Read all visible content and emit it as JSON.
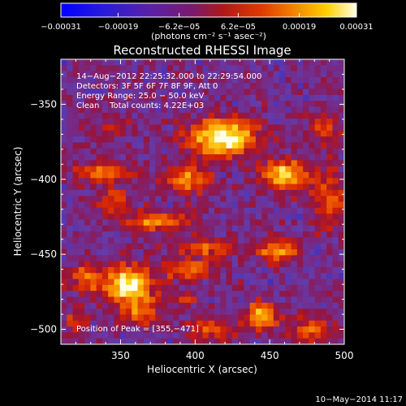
{
  "chart_data": {
    "type": "heatmap",
    "title": "Reconstructed RHESSI Image",
    "xlabel": "Heliocentric X (arcsec)",
    "ylabel": "Heliocentric Y (arcsec)",
    "xlim": [
      310,
      500
    ],
    "ylim": [
      -510,
      -320
    ],
    "x_ticks": [
      350,
      400,
      450,
      500
    ],
    "x_tick_labels": [
      "350",
      "400",
      "450",
      "500"
    ],
    "y_ticks": [
      -350,
      -400,
      -450,
      -500
    ],
    "y_tick_labels": [
      "−350",
      "−400",
      "−450",
      "−500"
    ],
    "colorbar": {
      "min": -0.00031,
      "max": 0.00031,
      "tick_values": [
        -0.00031,
        -0.00019,
        -6.2e-05,
        6.2e-05,
        0.00019,
        0.00031
      ],
      "tick_labels": [
        "−0.00031",
        "−0.00019",
        "−6.2e−05",
        "6.2e−05",
        "0.00019",
        "0.00031"
      ],
      "label": "(photons cm⁻² s⁻¹ asec⁻²)"
    },
    "info_lines": [
      "14−Aug−2012 22:25:32.000 to 22:29:54.000",
      "Detectors: 3F 5F 6F 7F 8F 9F, Att 0",
      "Energy Range: 25.0 − 50.0 keV",
      "Clean    Total counts: 4.22E+03"
    ],
    "peak_text": "Position of Peak = [355,−471]",
    "peak_position": [
      355,
      -471
    ],
    "sources": [
      {
        "x": 418,
        "y": -372,
        "rx": 22,
        "ry": 12,
        "amp": 1.0
      },
      {
        "x": 355,
        "y": -471,
        "rx": 15,
        "ry": 13,
        "amp": 1.0
      },
      {
        "x": 460,
        "y": -397,
        "rx": 14,
        "ry": 10,
        "amp": 0.85
      },
      {
        "x": 445,
        "y": -491,
        "rx": 11,
        "ry": 9,
        "amp": 0.72
      },
      {
        "x": 455,
        "y": -447,
        "rx": 14,
        "ry": 8,
        "amp": 0.6
      },
      {
        "x": 395,
        "y": -460,
        "rx": 18,
        "ry": 7,
        "amp": 0.55
      },
      {
        "x": 375,
        "y": -428,
        "rx": 22,
        "ry": 7,
        "amp": 0.6
      },
      {
        "x": 405,
        "y": -445,
        "rx": 18,
        "ry": 6,
        "amp": 0.48
      },
      {
        "x": 340,
        "y": -395,
        "rx": 20,
        "ry": 7,
        "amp": 0.55
      },
      {
        "x": 345,
        "y": -415,
        "rx": 12,
        "ry": 8,
        "amp": 0.4
      },
      {
        "x": 395,
        "y": -400,
        "rx": 15,
        "ry": 9,
        "amp": 0.6
      },
      {
        "x": 490,
        "y": -412,
        "rx": 10,
        "ry": 20,
        "amp": 0.5
      },
      {
        "x": 488,
        "y": -365,
        "rx": 10,
        "ry": 10,
        "amp": 0.35
      },
      {
        "x": 327,
        "y": -465,
        "rx": 12,
        "ry": 10,
        "amp": 0.5
      },
      {
        "x": 365,
        "y": -490,
        "rx": 12,
        "ry": 9,
        "amp": 0.45
      },
      {
        "x": 410,
        "y": -500,
        "rx": 15,
        "ry": 7,
        "amp": 0.45
      },
      {
        "x": 478,
        "y": -500,
        "rx": 14,
        "ry": 8,
        "amp": 0.55
      },
      {
        "x": 320,
        "y": -495,
        "rx": 8,
        "ry": 7,
        "amp": 0.4
      },
      {
        "x": 345,
        "y": -365,
        "rx": 14,
        "ry": 8,
        "amp": 0.3
      },
      {
        "x": 392,
        "y": -480,
        "rx": 10,
        "ry": 6,
        "amp": 0.3
      }
    ]
  },
  "footer": {
    "timestamp": "10−May−2014 11:17"
  }
}
